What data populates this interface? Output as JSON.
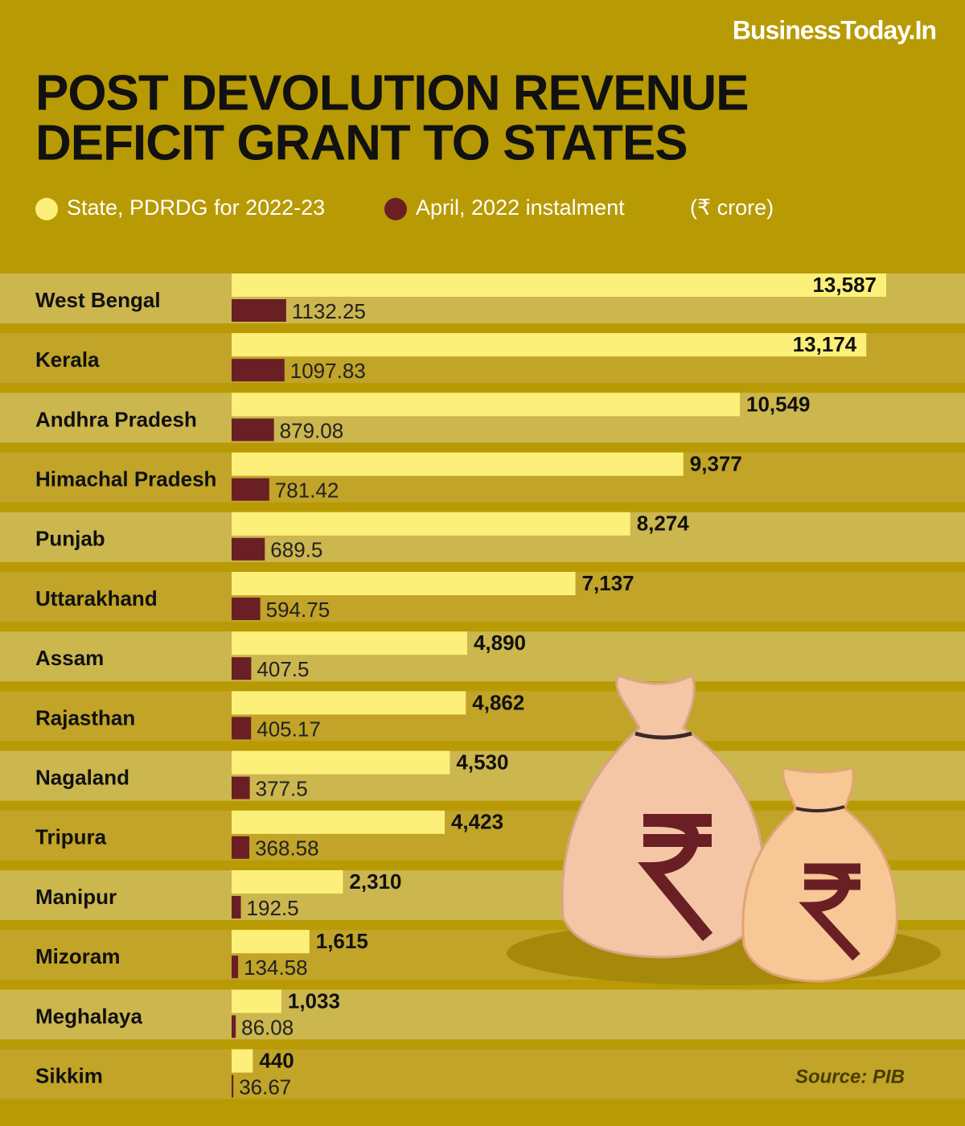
{
  "brand": "BusinessToday.In",
  "source": "Source: PIB",
  "chart_data": {
    "type": "bar",
    "orientation": "horizontal",
    "title_lines": [
      "POST DEVOLUTION REVENUE",
      "DEFICIT GRANT TO STATES"
    ],
    "unit_note": "(₹ crore)",
    "categories": [
      "West Bengal",
      "Kerala",
      "Andhra Pradesh",
      "Himachal Pradesh",
      "Punjab",
      "Uttarakhand",
      "Assam",
      "Rajasthan",
      "Nagaland",
      "Tripura",
      "Manipur",
      "Mizoram",
      "Meghalaya",
      "Sikkim"
    ],
    "series": [
      {
        "name": "State, PDRDG for 2022-23",
        "color": "#fdf07a",
        "values": [
          13587,
          13174,
          10549,
          9377,
          8274,
          7137,
          4890,
          4862,
          4530,
          4423,
          2310,
          1615,
          1033,
          440
        ],
        "value_labels": [
          "13,587",
          "13,174",
          "10,549",
          "9,377",
          "8,274",
          "7,137",
          "4,890",
          "4,862",
          "4,530",
          "4,423",
          "2,310",
          "1,615",
          "1,033",
          "440"
        ]
      },
      {
        "name": "April, 2022 instalment",
        "color": "#6a1f25",
        "values": [
          1132.25,
          1097.83,
          879.08,
          781.42,
          689.5,
          594.75,
          407.5,
          405.17,
          377.5,
          368.58,
          192.5,
          134.58,
          86.08,
          36.67
        ]
      }
    ]
  }
}
